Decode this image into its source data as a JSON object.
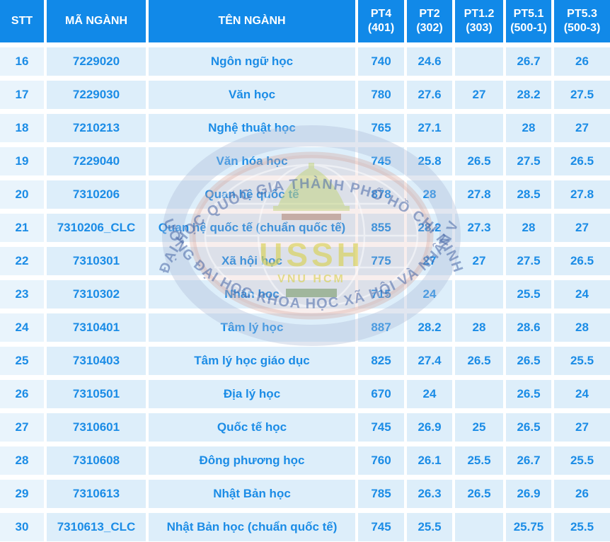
{
  "chart_data": {
    "type": "table",
    "title": "",
    "columns": [
      {
        "id": "stt",
        "label": "STT",
        "sub": ""
      },
      {
        "id": "ma",
        "label": "MÃ NGÀNH",
        "sub": ""
      },
      {
        "id": "ten",
        "label": "TÊN NGÀNH",
        "sub": ""
      },
      {
        "id": "pt4",
        "label": "PT4",
        "sub": "(401)"
      },
      {
        "id": "pt2",
        "label": "PT2",
        "sub": "(302)"
      },
      {
        "id": "pt1-2",
        "label": "PT1.2",
        "sub": "(303)"
      },
      {
        "id": "pt5-1",
        "label": "PT5.1",
        "sub": "(500-1)"
      },
      {
        "id": "pt5-3",
        "label": "PT5.3",
        "sub": "(500-3)"
      }
    ],
    "rows": [
      [
        "16",
        "7229020",
        "Ngôn ngữ học",
        "740",
        "24.6",
        "",
        "26.7",
        "26"
      ],
      [
        "17",
        "7229030",
        "Văn học",
        "780",
        "27.6",
        "27",
        "28.2",
        "27.5"
      ],
      [
        "18",
        "7210213",
        "Nghệ thuật học",
        "765",
        "27.1",
        "",
        "28",
        "27"
      ],
      [
        "19",
        "7229040",
        "Văn hóa học",
        "745",
        "25.8",
        "26.5",
        "27.5",
        "26.5"
      ],
      [
        "20",
        "7310206",
        "Quan hệ quốc tế",
        "878",
        "28",
        "27.8",
        "28.5",
        "27.8"
      ],
      [
        "21",
        "7310206_CLC",
        "Quan hệ quốc tế (chuẩn quốc tế)",
        "855",
        "28.2",
        "27.3",
        "28",
        "27"
      ],
      [
        "22",
        "7310301",
        "Xã hội học",
        "775",
        "27",
        "27",
        "27.5",
        "26.5"
      ],
      [
        "23",
        "7310302",
        "Nhân học",
        "715",
        "24",
        "",
        "25.5",
        "24"
      ],
      [
        "24",
        "7310401",
        "Tâm lý học",
        "887",
        "28.2",
        "28",
        "28.6",
        "28"
      ],
      [
        "25",
        "7310403",
        "Tâm lý học giáo dục",
        "825",
        "27.4",
        "26.5",
        "26.5",
        "25.5"
      ],
      [
        "26",
        "7310501",
        "Địa lý học",
        "670",
        "24",
        "",
        "26.5",
        "24"
      ],
      [
        "27",
        "7310601",
        "Quốc tế học",
        "745",
        "26.9",
        "25",
        "26.5",
        "27"
      ],
      [
        "28",
        "7310608",
        "Đông phương học",
        "760",
        "26.1",
        "25.5",
        "26.7",
        "25.5"
      ],
      [
        "29",
        "7310613",
        "Nhật Bản học",
        "785",
        "26.3",
        "26.5",
        "26.9",
        "26"
      ],
      [
        "30",
        "7310613_CLC",
        "Nhật Bản học (chuẩn quốc tế)",
        "745",
        "25.5",
        "",
        "25.75",
        "25.5"
      ]
    ],
    "layout_hints": {
      "grid": "white gutters between cells",
      "header_position": "top"
    }
  },
  "watermark": {
    "top_arc": "ĐẠI HỌC QUỐC GIA THÀNH PHỐ HỒ CHÍ MINH",
    "bottom_arc": "TRƯỜNG ĐẠI HỌC KHOA HỌC XÃ HỘI VÀ NHÂN VĂN",
    "acronym": "USSH",
    "org": "VNU HCM"
  },
  "colors": {
    "header_bg": "#1189e8",
    "cell_bg": "#ddeefa",
    "cell_bg_light": "#e9f4fc",
    "text_blue": "#1b8ce6",
    "header_text": "#ffffff"
  }
}
